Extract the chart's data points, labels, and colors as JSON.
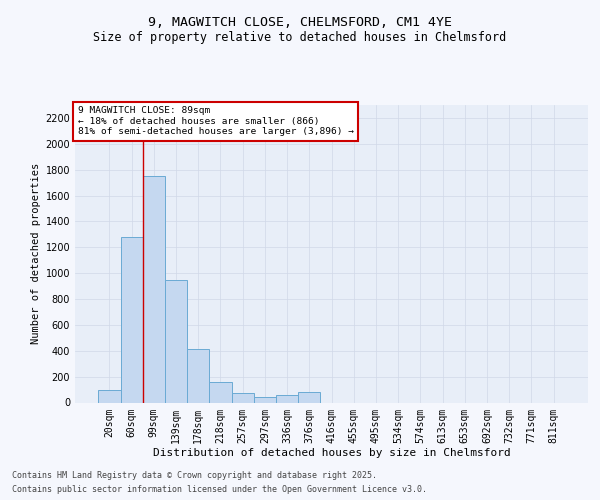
{
  "title1": "9, MAGWITCH CLOSE, CHELMSFORD, CM1 4YE",
  "title2": "Size of property relative to detached houses in Chelmsford",
  "xlabel": "Distribution of detached houses by size in Chelmsford",
  "ylabel": "Number of detached properties",
  "categories": [
    "20sqm",
    "60sqm",
    "99sqm",
    "139sqm",
    "178sqm",
    "218sqm",
    "257sqm",
    "297sqm",
    "336sqm",
    "376sqm",
    "416sqm",
    "455sqm",
    "495sqm",
    "534sqm",
    "574sqm",
    "613sqm",
    "653sqm",
    "692sqm",
    "732sqm",
    "771sqm",
    "811sqm"
  ],
  "values": [
    100,
    1280,
    1750,
    950,
    415,
    160,
    70,
    40,
    55,
    80,
    0,
    0,
    0,
    0,
    0,
    0,
    0,
    0,
    0,
    0,
    0
  ],
  "bar_color": "#c5d8f0",
  "bar_edge_color": "#6aaad4",
  "bar_linewidth": 0.7,
  "grid_color": "#d0d8e8",
  "annotation_box_text": "9 MAGWITCH CLOSE: 89sqm\n← 18% of detached houses are smaller (866)\n81% of semi-detached houses are larger (3,896) →",
  "annotation_box_color": "#ffffff",
  "annotation_box_edge_color": "#cc0000",
  "vline_x": 1.5,
  "vline_color": "#cc0000",
  "vline_linewidth": 1.0,
  "ylim": [
    0,
    2300
  ],
  "yticks": [
    0,
    200,
    400,
    600,
    800,
    1000,
    1200,
    1400,
    1600,
    1800,
    2000,
    2200
  ],
  "footer_line1": "Contains HM Land Registry data © Crown copyright and database right 2025.",
  "footer_line2": "Contains public sector information licensed under the Open Government Licence v3.0.",
  "plot_bg_color": "#e8eef8",
  "fig_bg_color": "#f5f7fd",
  "title1_fontsize": 9.5,
  "title2_fontsize": 8.5,
  "ylabel_fontsize": 7.5,
  "xlabel_fontsize": 8.0,
  "tick_fontsize": 7.0,
  "annot_fontsize": 6.8,
  "footer_fontsize": 6.0
}
